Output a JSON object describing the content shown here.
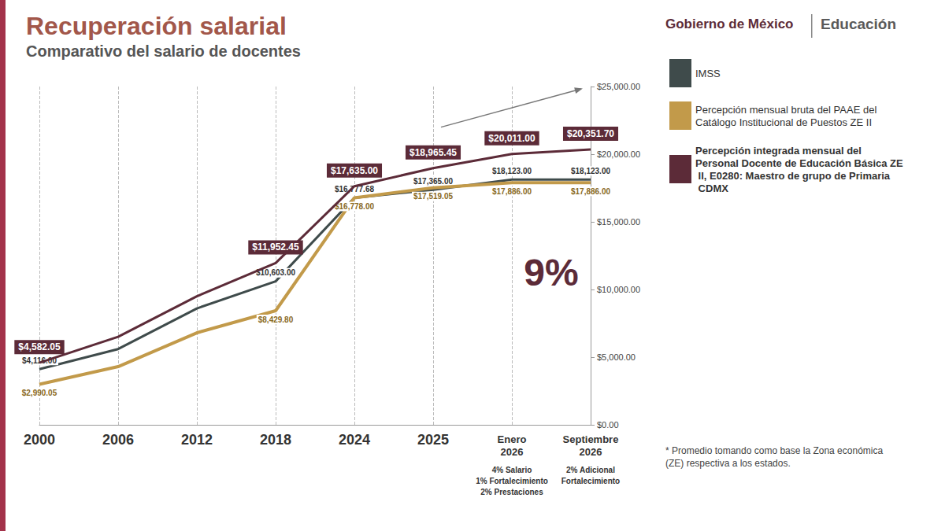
{
  "chart_data": {
    "type": "line",
    "title": "Recuperación salarial",
    "subtitle": "Comparativo del salario de docentes",
    "logo_texts": [
      "Gobierno de México",
      "Educación"
    ],
    "categories": [
      "2000",
      "2006",
      "2012",
      "2018",
      "2024",
      "2025",
      "Enero 2026",
      "Septiembre 2026"
    ],
    "category_notes": [
      {
        "category": "Enero 2026",
        "lines": [
          "4% Salario",
          "1% Fortalecimiento",
          "2% Prestaciones"
        ]
      },
      {
        "category": "Septiembre 2026",
        "lines": [
          "2% Adicional",
          "Fortalecimiento"
        ]
      }
    ],
    "annotations": [
      {
        "text": "9%"
      }
    ],
    "footnote": "* Promedio tomando como base la Zona económica (ZE) respectiva a los estados.",
    "series": [
      {
        "name": "IMSS",
        "color": "#3f4b4b",
        "values": [
          4116.0,
          5600,
          8600,
          10603.0,
          16777.68,
          17365.0,
          18123.0,
          18123.0
        ],
        "value_labels": [
          "$4,116.00",
          null,
          null,
          "$10,603.00",
          "$16,777.68",
          "$17,365.00",
          "$18,123.00",
          "$18,123.00"
        ]
      },
      {
        "name": "Percepción mensual bruta del PAAE del Catálogo Institucional de Puestos ZE II",
        "color": "#c29a4a",
        "values": [
          2990.05,
          4300,
          6800,
          8429.8,
          16778.0,
          17519.05,
          17886.0,
          17886.0
        ],
        "value_labels": [
          "$2,990.05",
          null,
          null,
          "$8,429.80",
          "$16,778.00",
          "$17,519.05",
          "$17,886.00",
          "$17,886.00"
        ]
      },
      {
        "name": "Percepción integrada mensual del Personal Docente de Educación Básica ZE II, E0280: Maestro de grupo de Primaria CDMX",
        "color": "#5c2b38",
        "values": [
          4582.05,
          6500,
          9500,
          11952.45,
          17635.0,
          18965.45,
          20011.0,
          20351.7
        ],
        "value_labels": [
          "$4,582.05",
          null,
          null,
          "$11,952.45",
          "$17,635.00",
          "$18,965.45",
          "$20,011.00",
          "$20,351.70"
        ]
      }
    ],
    "ylim": [
      0,
      25000
    ],
    "yticks": [
      {
        "value": 0,
        "label": "$0.00"
      },
      {
        "value": 5000,
        "label": "$5,000.00"
      },
      {
        "value": 10000,
        "label": "$10,000.00"
      },
      {
        "value": 15000,
        "label": "$15,000.00"
      },
      {
        "value": 20000,
        "label": "$20,000.00"
      },
      {
        "value": 25000,
        "label": "$25,000.00"
      }
    ],
    "grid": "x",
    "legend": "right",
    "data_labels": true,
    "marker": "none"
  }
}
